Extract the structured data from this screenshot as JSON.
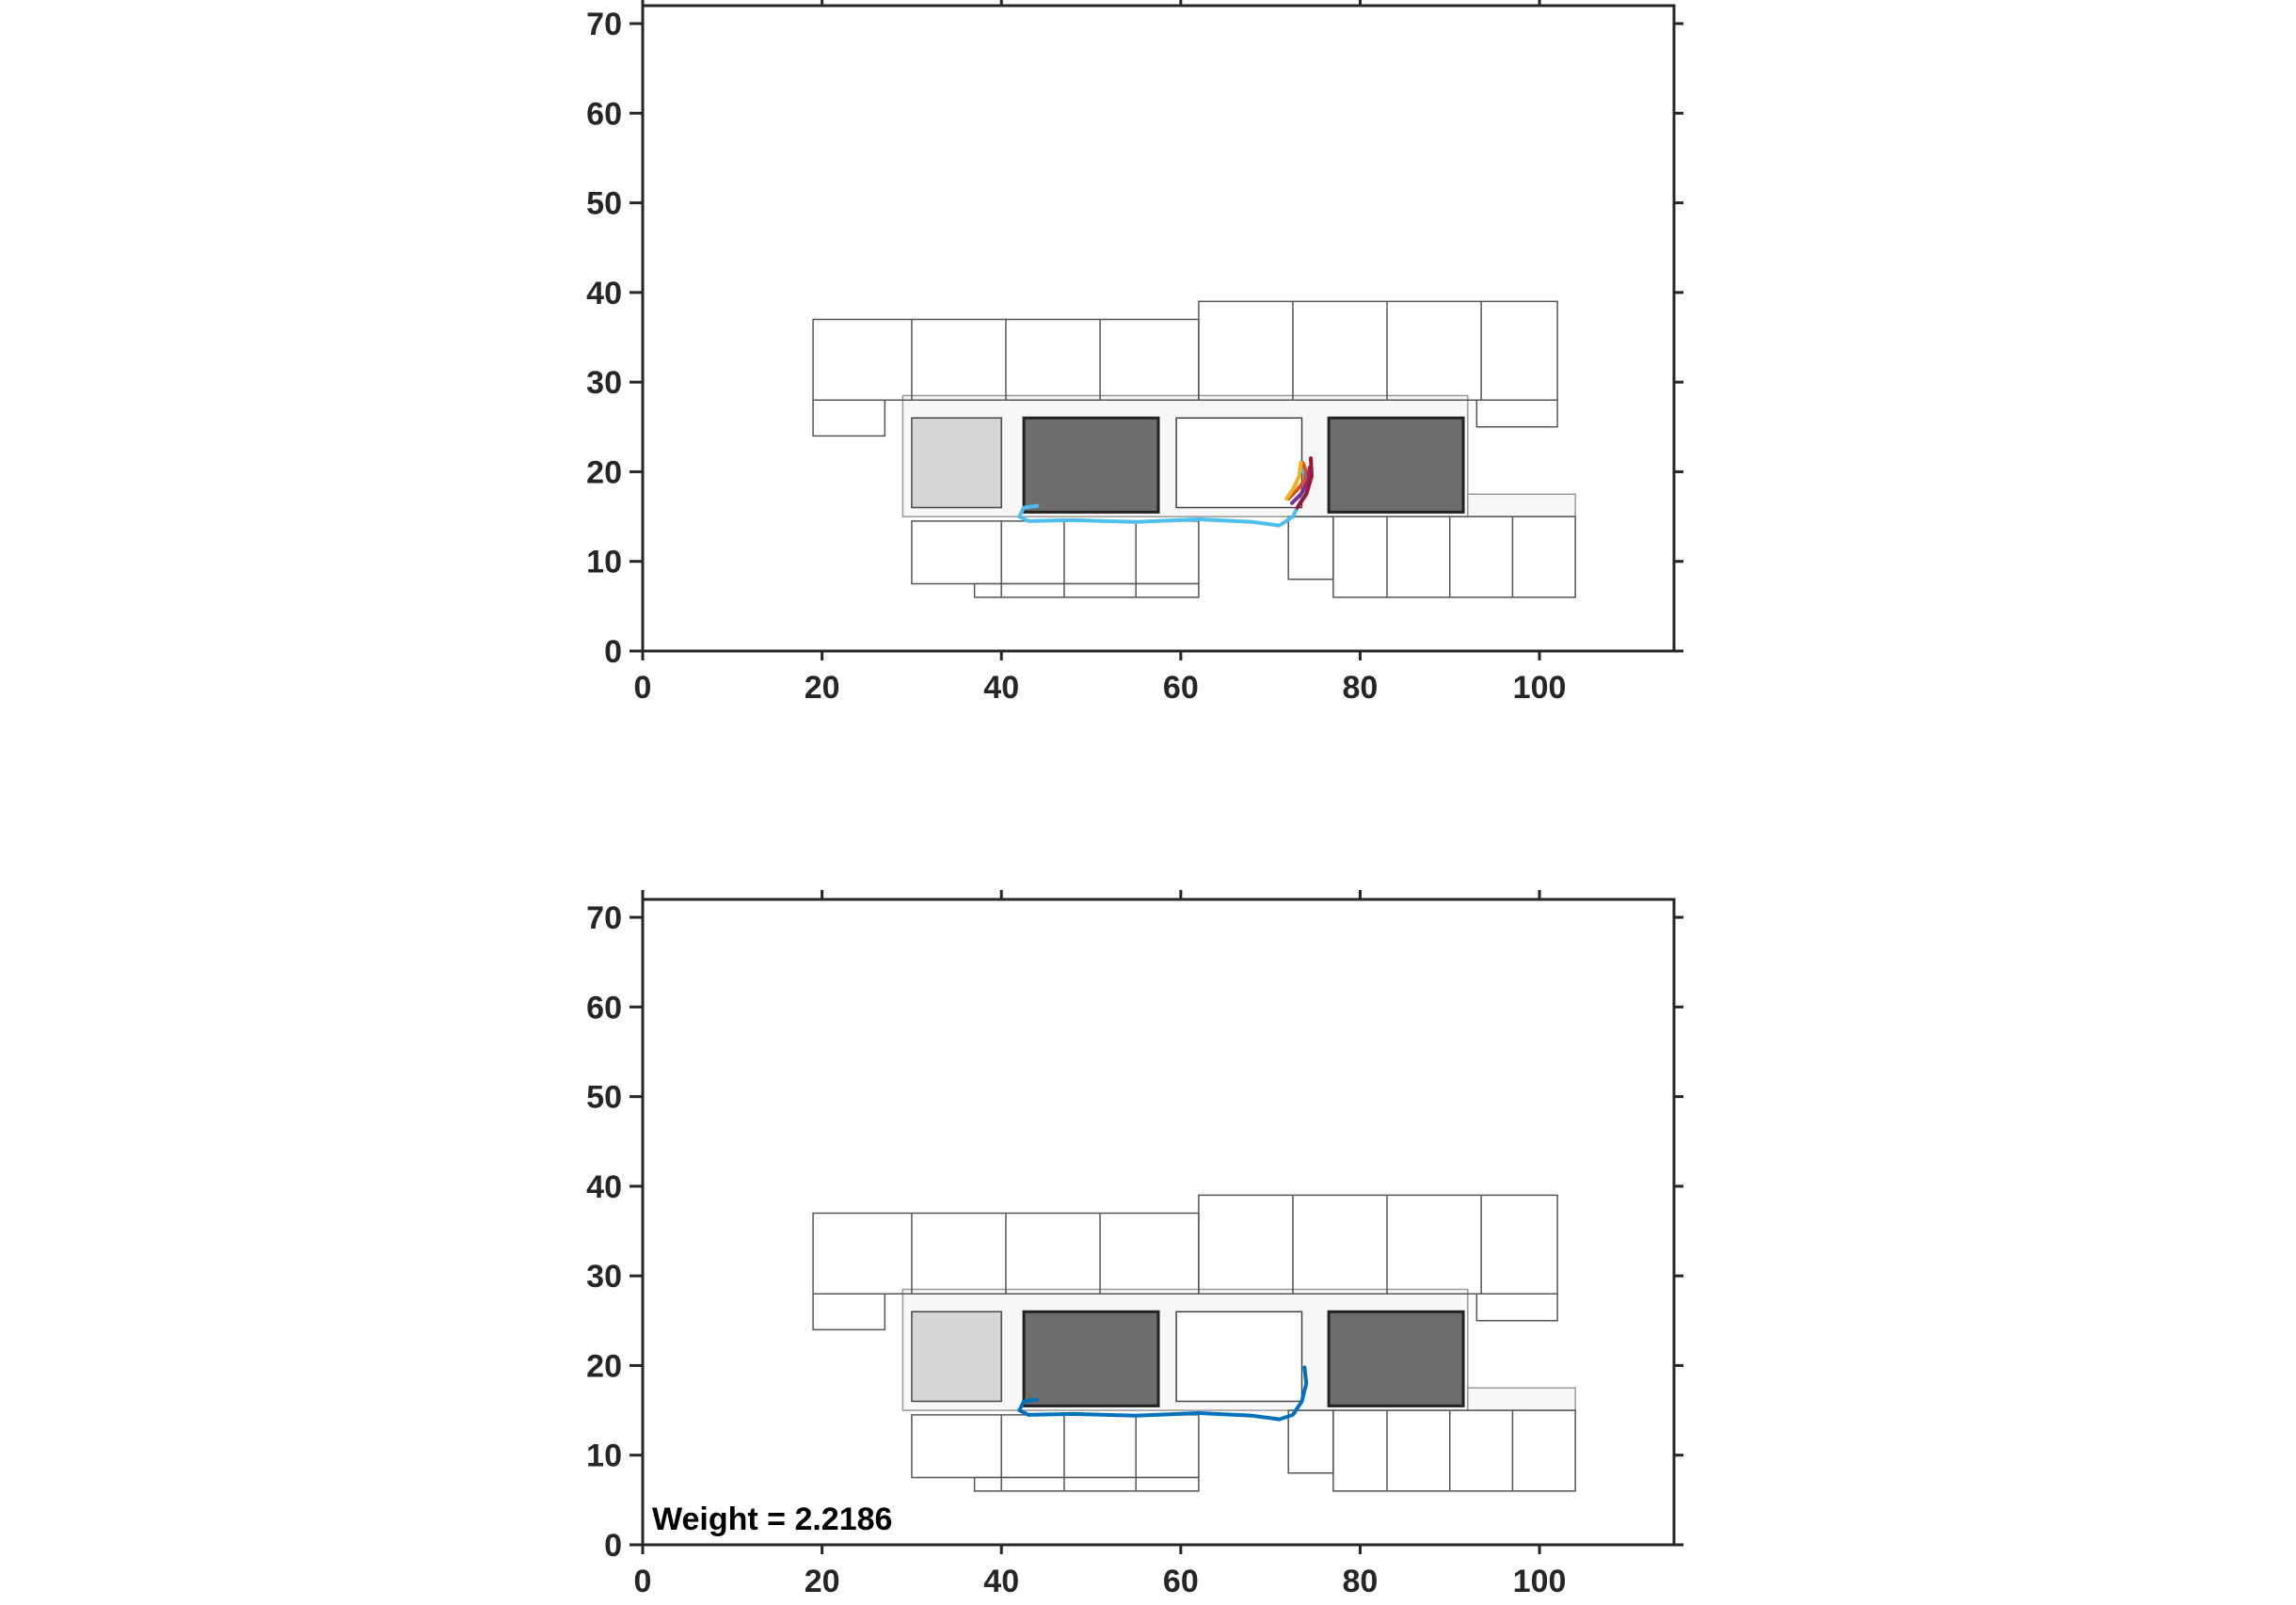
{
  "chart_data": [
    {
      "type": "line",
      "xlim": [
        0,
        115
      ],
      "ylim": [
        0,
        72
      ],
      "xticks": [
        0,
        20,
        40,
        60,
        80,
        100
      ],
      "yticks": [
        0,
        10,
        20,
        30,
        40,
        50,
        60,
        70
      ],
      "series": [
        {
          "color": "#4dbeee",
          "x": [
            44,
            42.5,
            42,
            43,
            48,
            55,
            62,
            68,
            71,
            72.5,
            73.5,
            74,
            73.5
          ],
          "y": [
            16.2,
            16,
            15,
            14.5,
            14.6,
            14.4,
            14.7,
            14.4,
            14,
            15,
            17,
            19,
            20.5
          ]
        },
        {
          "color": "#d95319",
          "x": [
            72,
            73,
            73.8,
            74,
            73.6
          ],
          "y": [
            17,
            18,
            19,
            20,
            21
          ]
        },
        {
          "color": "#edb120",
          "x": [
            71.8,
            72.6,
            73.2,
            73.4
          ],
          "y": [
            17,
            18.2,
            19.5,
            21
          ]
        },
        {
          "color": "#7e2f8e",
          "x": [
            72.4,
            73.4,
            74.2,
            74.4
          ],
          "y": [
            16.5,
            17.5,
            19,
            20.5
          ]
        },
        {
          "color": "#a2142f",
          "x": [
            73,
            74,
            74.6,
            74.5
          ],
          "y": [
            16,
            17.5,
            19.5,
            21.5
          ]
        }
      ]
    },
    {
      "type": "line",
      "xlim": [
        0,
        115
      ],
      "ylim": [
        0,
        72
      ],
      "xticks": [
        0,
        20,
        40,
        60,
        80,
        100
      ],
      "yticks": [
        0,
        10,
        20,
        30,
        40,
        50,
        60,
        70
      ],
      "annotation": "Weight = 2.2186",
      "series": [
        {
          "color": "#0072bd",
          "x": [
            44,
            42.5,
            42,
            43,
            48,
            55,
            62,
            68,
            71,
            72.5,
            73.5,
            74,
            73.8
          ],
          "y": [
            16.2,
            16,
            15,
            14.5,
            14.6,
            14.4,
            14.7,
            14.4,
            14,
            14.5,
            16,
            18,
            19.8
          ]
        }
      ]
    }
  ]
}
